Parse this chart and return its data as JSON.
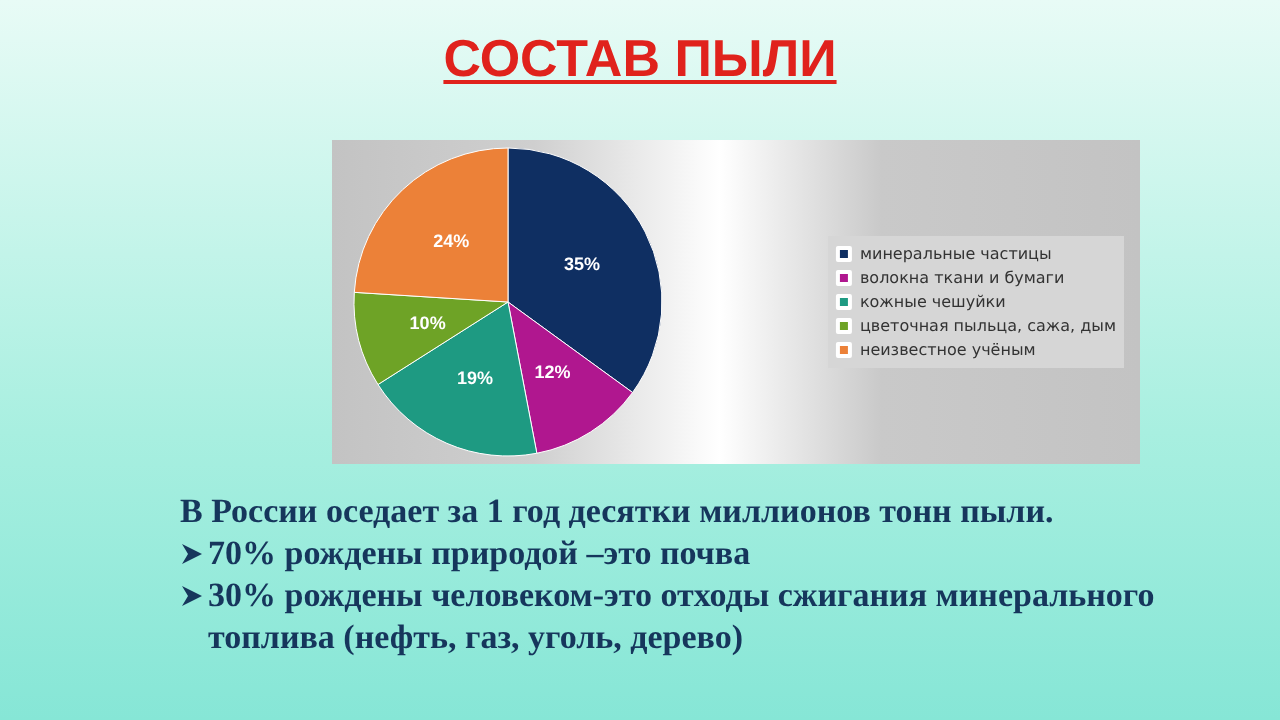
{
  "chart_data": {
    "type": "pie",
    "title": "СОСТАВ ПЫЛИ",
    "categories": [
      "минеральные частицы",
      "волокна ткани и бумаги",
      "кожные чешуйки",
      "цветочная пыльца, сажа, дым",
      "неизвестное учёным"
    ],
    "values": [
      35,
      12,
      19,
      10,
      24
    ],
    "value_labels": [
      "35%",
      "12%",
      "19%",
      "10%",
      "24%"
    ],
    "colors": [
      "#0f2f62",
      "#b0178f",
      "#1e9a82",
      "#6ea326",
      "#ec8138"
    ],
    "legend": "right",
    "annotations": [
      "В России оседает за 1 год десятки миллионов тонн пыли.",
      "70%  рождены природой –это почва",
      "30%  рождены человеком-это отходы сжигания минерального топлива (нефть, газ, уголь, дерево)"
    ]
  }
}
